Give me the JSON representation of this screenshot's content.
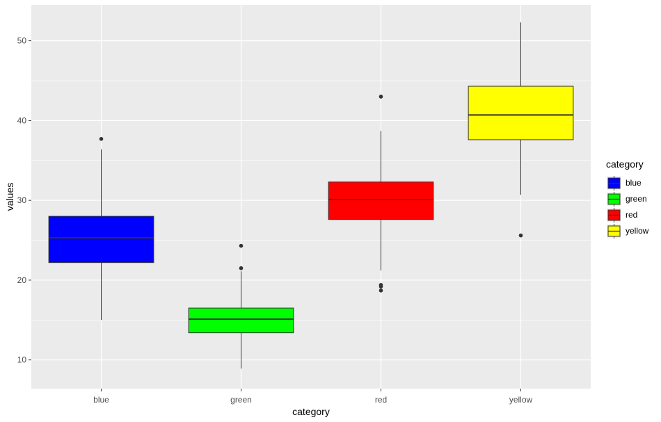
{
  "chart_data": {
    "type": "boxplot",
    "xlabel": "category",
    "ylabel": "values",
    "ylim": [
      6.4,
      54.5
    ],
    "y_ticks": [
      "10",
      "20",
      "30",
      "40",
      "50"
    ],
    "grid": true,
    "legend": {
      "title": "category",
      "placement": "right",
      "items": [
        {
          "label": "blue",
          "color": "#0000FF"
        },
        {
          "label": "green",
          "color": "#00FF00"
        },
        {
          "label": "red",
          "color": "#FF0000"
        },
        {
          "label": "yellow",
          "color": "#FFFF00"
        }
      ]
    },
    "categories": [
      "blue",
      "green",
      "red",
      "yellow"
    ],
    "boxes": [
      {
        "category": "blue",
        "color": "#0000FF",
        "whisker_low": 15.0,
        "q1": 22.2,
        "median": 25.3,
        "q3": 28.0,
        "whisker_high": 36.4,
        "outliers": [
          37.7
        ]
      },
      {
        "category": "green",
        "color": "#00FF00",
        "whisker_low": 8.9,
        "q1": 13.4,
        "median": 15.1,
        "q3": 16.5,
        "whisker_high": 21.1,
        "outliers": [
          21.5,
          24.3
        ]
      },
      {
        "category": "red",
        "color": "#FF0000",
        "whisker_low": 21.2,
        "q1": 27.6,
        "median": 30.1,
        "q3": 32.3,
        "whisker_high": 38.7,
        "outliers": [
          18.7,
          19.2,
          19.4,
          43.0
        ]
      },
      {
        "category": "yellow",
        "color": "#FFFF00",
        "whisker_low": 30.7,
        "q1": 37.6,
        "median": 40.7,
        "q3": 44.3,
        "whisker_high": 52.3,
        "outliers": [
          25.6
        ]
      }
    ]
  }
}
